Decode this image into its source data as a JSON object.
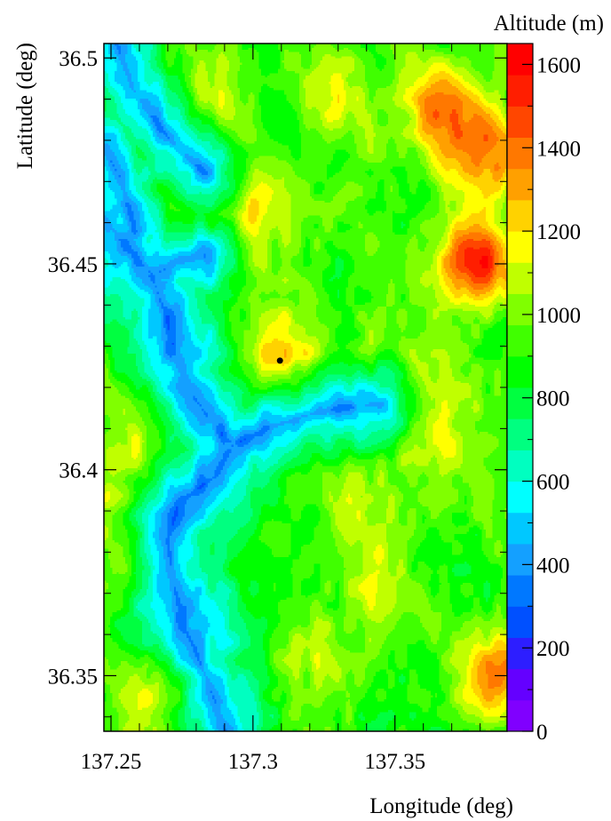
{
  "chart_data": {
    "type": "heatmap",
    "title": "",
    "xlabel": "Longitude (deg)",
    "ylabel": "Latitude (deg)",
    "colorbar_label": "Altitude (m)",
    "xlim": [
      137.2475,
      137.3895
    ],
    "ylim": [
      36.3365,
      36.5035
    ],
    "x_ticks": [
      {
        "value": 137.25,
        "label": "137.25"
      },
      {
        "value": 137.3,
        "label": "137.3"
      },
      {
        "value": 137.35,
        "label": "137.35"
      }
    ],
    "y_ticks": [
      {
        "value": 36.35,
        "label": "36.35"
      },
      {
        "value": 36.4,
        "label": "36.4"
      },
      {
        "value": 36.45,
        "label": "36.45"
      },
      {
        "value": 36.5,
        "label": "36.5"
      }
    ],
    "colorbar": {
      "range": [
        0,
        1650
      ],
      "ticks": [
        {
          "value": 0,
          "label": "0"
        },
        {
          "value": 200,
          "label": "200"
        },
        {
          "value": 400,
          "label": "400"
        },
        {
          "value": 600,
          "label": "600"
        },
        {
          "value": 800,
          "label": "800"
        },
        {
          "value": 1000,
          "label": "1000"
        },
        {
          "value": 1200,
          "label": "1200"
        },
        {
          "value": 1400,
          "label": "1400"
        },
        {
          "value": 1600,
          "label": "1600"
        }
      ],
      "colors": [
        "#8000ff",
        "#6400ff",
        "#2d1eff",
        "#0050ff",
        "#0078ff",
        "#14a0ff",
        "#00c8ff",
        "#00ffff",
        "#00ffc0",
        "#00ff80",
        "#00ff40",
        "#00ff00",
        "#40ff00",
        "#80ff00",
        "#c0ff00",
        "#ffff00",
        "#ffd200",
        "#ffa000",
        "#ff7800",
        "#ff4600",
        "#ff1e00",
        "#ff0000"
      ]
    },
    "marker": {
      "lon": 137.3095,
      "lat": 36.4265
    },
    "peaks": [
      {
        "lon": 137.379,
        "lat": 36.451,
        "alt": 1580
      },
      {
        "lon": 137.38,
        "lat": 36.478,
        "alt": 1480
      },
      {
        "lon": 137.364,
        "lat": 36.489,
        "alt": 1310
      },
      {
        "lon": 137.309,
        "lat": 36.4295,
        "alt": 1320
      },
      {
        "lon": 137.3,
        "lat": 36.464,
        "alt": 1250
      },
      {
        "lon": 137.385,
        "lat": 36.35,
        "alt": 1420
      },
      {
        "lon": 137.26,
        "lat": 36.403,
        "alt": 1290
      },
      {
        "lon": 137.27,
        "lat": 36.345,
        "alt": 1280
      },
      {
        "lon": 137.255,
        "lat": 36.38,
        "alt": 1220
      },
      {
        "lon": 137.345,
        "lat": 36.37,
        "alt": 1180
      },
      {
        "lon": 137.33,
        "lat": 36.49,
        "alt": 1180
      },
      {
        "lon": 137.285,
        "lat": 36.49,
        "alt": 1120
      },
      {
        "lon": 137.34,
        "lat": 36.39,
        "alt": 1130
      },
      {
        "lon": 137.365,
        "lat": 36.41,
        "alt": 1100
      },
      {
        "lon": 137.32,
        "lat": 36.355,
        "alt": 1150
      },
      {
        "lon": 137.36,
        "lat": 36.43,
        "alt": 1080
      }
    ],
    "rivers": [
      {
        "name": "",
        "points": [
          [
            137.2475,
            36.462
          ],
          [
            137.255,
            36.454
          ],
          [
            137.264,
            36.448
          ],
          [
            137.268,
            36.44
          ],
          [
            137.272,
            36.43
          ],
          [
            137.279,
            36.418
          ],
          [
            137.287,
            36.41
          ],
          [
            137.293,
            36.406
          ],
          [
            137.286,
            36.398
          ],
          [
            137.274,
            36.392
          ],
          [
            137.27,
            36.383
          ],
          [
            137.272,
            36.372
          ],
          [
            137.276,
            36.362
          ],
          [
            137.282,
            36.352
          ],
          [
            137.287,
            36.343
          ],
          [
            137.29,
            36.3365
          ]
        ]
      },
      {
        "name": "",
        "points": [
          [
            137.252,
            36.5035
          ],
          [
            137.258,
            36.492
          ],
          [
            137.266,
            36.484
          ],
          [
            137.275,
            36.477
          ],
          [
            137.283,
            36.472
          ]
        ]
      },
      {
        "name": "",
        "points": [
          [
            137.293,
            36.406
          ],
          [
            137.305,
            36.41
          ],
          [
            137.318,
            36.413
          ],
          [
            137.332,
            36.415
          ],
          [
            137.345,
            36.416
          ]
        ]
      },
      {
        "name": "",
        "points": [
          [
            137.265,
            36.447
          ],
          [
            137.274,
            36.451
          ],
          [
            137.283,
            36.452
          ]
        ]
      },
      {
        "name": "",
        "points": [
          [
            137.2475,
            36.478
          ],
          [
            137.254,
            36.47
          ],
          [
            137.258,
            36.458
          ]
        ]
      }
    ]
  }
}
